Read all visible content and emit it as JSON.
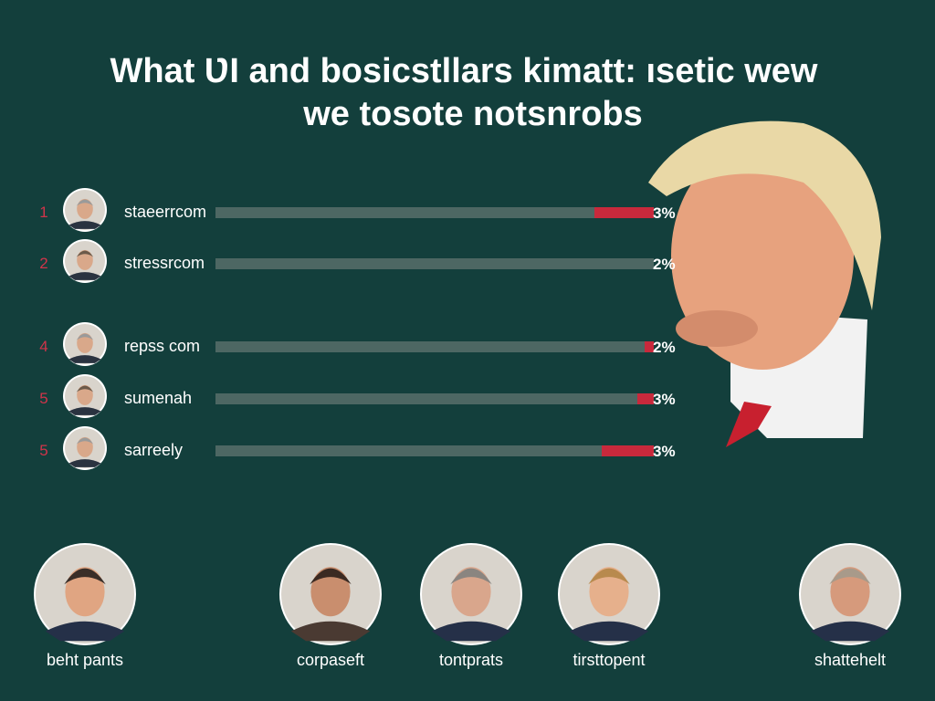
{
  "title": [
    "What ƲI  and bosicstllars kimatt: ısetic wew",
    "we tosote notsnrobs"
  ],
  "rows": [
    {
      "rank": "1",
      "name": "staeerrcom",
      "value": "3%"
    },
    {
      "rank": "2",
      "name": "stressrcom",
      "value": "2%"
    },
    {
      "rank": "4",
      "name": "repss com",
      "value": "2%"
    },
    {
      "rank": "5",
      "name": "sumenah",
      "value": "3%"
    },
    {
      "rank": "5",
      "name": "sarreely",
      "value": "3%"
    }
  ],
  "people": [
    "beht pants",
    "corpaseft",
    "tontprats",
    "tirsttopent",
    "shattehelt"
  ]
}
